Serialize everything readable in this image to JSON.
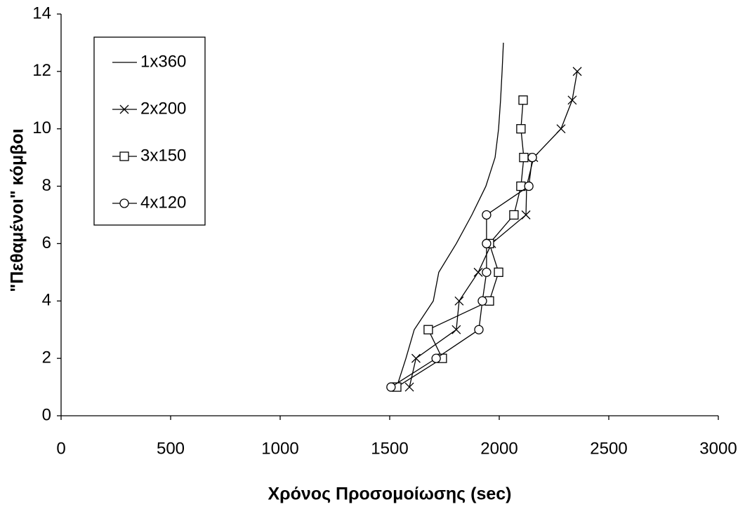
{
  "chart_data": {
    "type": "line",
    "x_label": "Χρόνος Προσομοίωσης (sec)",
    "y_label": "\"Πεθαμένοι\" κόμβοι",
    "xlim": [
      0,
      3000
    ],
    "xticks": [
      0,
      500,
      1000,
      1500,
      2000,
      2500,
      3000
    ],
    "ylim": [
      0,
      14
    ],
    "yticks": [
      0,
      2,
      4,
      6,
      8,
      10,
      12,
      14
    ],
    "grid": false,
    "legend": "top-left",
    "series": [
      {
        "name": "1x360",
        "color": "#000000",
        "marker": "none",
        "x": [
          1532,
          1574,
          1612,
          1699,
          1724,
          1804,
          1875,
          1939,
          1981,
          1997,
          2006,
          2013,
          2019
        ],
        "values": [
          1,
          2,
          3,
          4,
          5,
          6,
          7,
          8,
          9,
          10,
          11,
          12,
          13
        ]
      },
      {
        "name": "2x200",
        "color": "#000000",
        "marker": "x",
        "x": [
          1590,
          1620,
          1804,
          1817,
          1904,
          1965,
          2122,
          2125,
          2157,
          2282,
          2333,
          2356
        ],
        "values": [
          1,
          2,
          3,
          4,
          5,
          6,
          7,
          8,
          9,
          10,
          11,
          12
        ]
      },
      {
        "name": "3x150",
        "color": "#000000",
        "marker": "square",
        "x": [
          1532,
          1740,
          1676,
          1955,
          1997,
          1955,
          2067,
          2099,
          2112,
          2099,
          2109
        ],
        "values": [
          1,
          2,
          3,
          4,
          5,
          6,
          7,
          8,
          9,
          10,
          11
        ]
      },
      {
        "name": "4x120",
        "color": "#000000",
        "marker": "circle",
        "x": [
          1506,
          1712,
          1907,
          1923,
          1942,
          1942,
          1942,
          2135,
          2151
        ],
        "values": [
          1,
          2,
          3,
          4,
          5,
          6,
          7,
          8,
          9
        ]
      }
    ]
  }
}
